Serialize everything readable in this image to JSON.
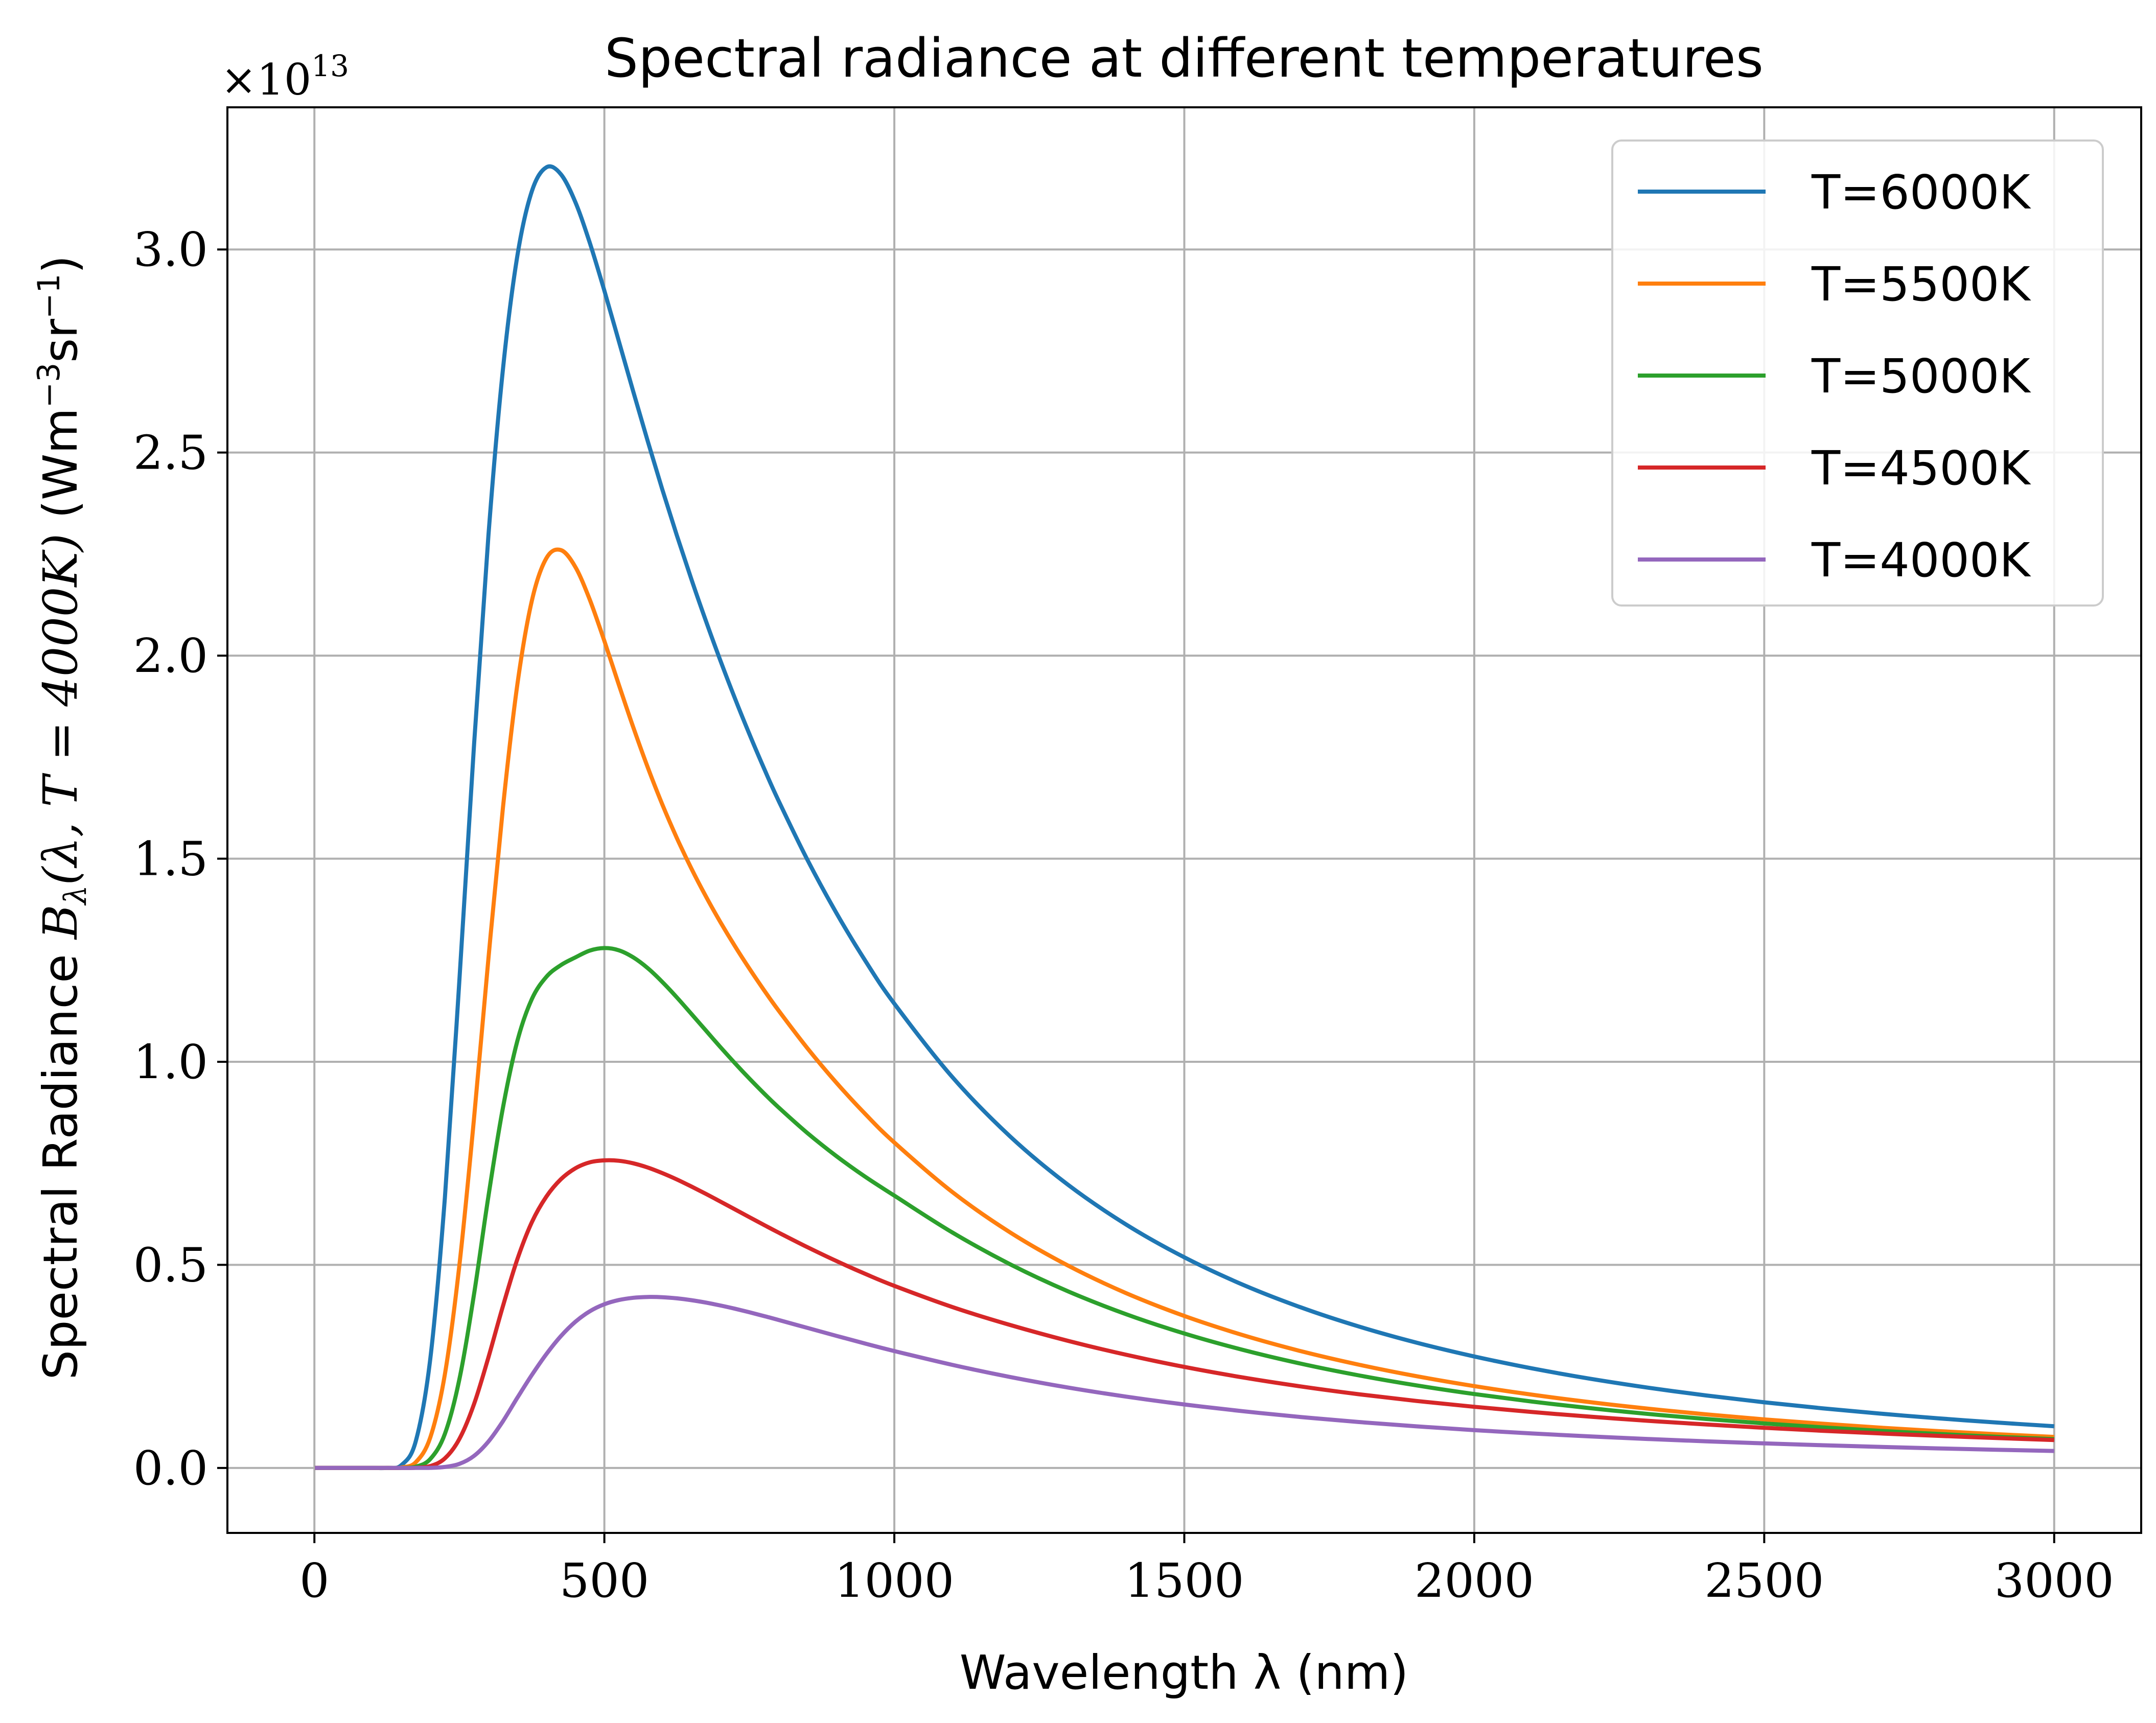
{
  "chart_data": {
    "type": "line",
    "title": "Spectral radiance at different temperatures",
    "xlabel": "Wavelength λ (nm)",
    "ylabel": "Spectral Radiance B_λ(λ, T = 4000K) (Wm⁻³sr⁻¹)",
    "ylabel_parts": {
      "prefix": "Spectral Radiance ",
      "symbol": "B",
      "symbol_sub": "λ",
      "args": "(λ, T = 4000K)",
      "units_open": " (Wm",
      "units_exp1": "−3",
      "units_mid": "sr",
      "units_exp2": "−1",
      "units_close": ")"
    },
    "offset_text": {
      "base": "×10",
      "exponent": "13"
    },
    "xlim": [
      -150,
      3150
    ],
    "ylim": [
      -0.16,
      3.35
    ],
    "y_scale_factor": 10000000000000.0,
    "xticks": [
      0,
      500,
      1000,
      1500,
      2000,
      2500,
      3000
    ],
    "xtick_labels": [
      "0",
      "500",
      "1000",
      "1500",
      "2000",
      "2500",
      "3000"
    ],
    "yticks": [
      0.0,
      0.5,
      1.0,
      1.5,
      2.0,
      2.5,
      3.0
    ],
    "ytick_labels": [
      "0.0",
      "0.5",
      "1.0",
      "1.5",
      "2.0",
      "2.5",
      "3.0"
    ],
    "grid": true,
    "legend_position": "top-right",
    "x": [
      1,
      50,
      100,
      125,
      150,
      175,
      200,
      225,
      250,
      275,
      300,
      325,
      350,
      375,
      400,
      425,
      450,
      475,
      500,
      525,
      550,
      575,
      600,
      625,
      650,
      675,
      700,
      725,
      750,
      775,
      800,
      850,
      900,
      950,
      1000,
      1100,
      1200,
      1300,
      1400,
      1500,
      1600,
      1700,
      1800,
      1900,
      2000,
      2100,
      2200,
      2300,
      2400,
      2500,
      2600,
      2700,
      2800,
      2900,
      3000
    ],
    "series": [
      {
        "name": "T=6000K",
        "color": "#1f77b4",
        "values": [
          0.0,
          0.0,
          0.0,
          0.0001,
          0.0069,
          0.0667,
          0.2706,
          0.6655,
          1.1997,
          1.7737,
          2.2942,
          2.7038,
          2.9843,
          3.1436,
          3.2023,
          3.1853,
          3.1165,
          3.0158,
          2.8983,
          2.7741,
          2.6492,
          2.5269,
          2.4089,
          2.296,
          2.1883,
          2.0857,
          1.9881,
          1.8953,
          1.8071,
          1.7234,
          1.644,
          1.4977,
          1.3665,
          1.2487,
          1.1431,
          0.9623,
          0.8158,
          0.6966,
          0.599,
          0.5186,
          0.4517,
          0.3958,
          0.3486,
          0.3086,
          0.2744,
          0.245,
          0.2196,
          0.1976,
          0.1784,
          0.1616,
          0.1468,
          0.1337,
          0.1222,
          0.1119,
          0.1027
        ]
      },
      {
        "name": "T=5500K",
        "color": "#ff7f0e",
        "values": [
          0.0,
          0.0,
          0.0,
          0.0,
          0.0011,
          0.0143,
          0.0758,
          0.2306,
          0.4985,
          0.8567,
          1.2528,
          1.6246,
          1.929,
          2.1353,
          2.2399,
          2.2599,
          2.2183,
          2.1372,
          2.0359,
          1.9282,
          1.8229,
          1.7241,
          1.6334,
          1.5509,
          1.4759,
          1.4073,
          1.344,
          1.285,
          1.2295,
          1.177,
          1.127,
          1.0336,
          0.9486,
          0.8713,
          0.8012,
          0.6793,
          0.5796,
          0.4978,
          0.4302,
          0.3742,
          0.3274,
          0.2879,
          0.2545,
          0.226,
          0.2015,
          0.1803,
          0.1619,
          0.1459,
          0.1319,
          0.1196,
          0.1088,
          0.0992,
          0.0907,
          0.0832,
          0.0764
        ]
      },
      {
        "name": "T=5000K",
        "color": "#2ca02c",
        "values": [
          0.0,
          0.0,
          0.0,
          0.0,
          0.0002,
          0.0032,
          0.0222,
          0.0839,
          0.218,
          0.4253,
          0.6682,
          0.8862,
          1.0513,
          1.1545,
          1.2091,
          1.238,
          1.257,
          1.2738,
          1.28,
          1.2745,
          1.2569,
          1.2303,
          1.1965,
          1.1585,
          1.118,
          1.077,
          1.0363,
          0.9968,
          0.9588,
          0.9226,
          0.8882,
          0.8247,
          0.7678,
          0.7167,
          0.6705,
          0.5797,
          0.5013,
          0.4345,
          0.3783,
          0.331,
          0.291,
          0.257,
          0.2281,
          0.2033,
          0.1819,
          0.1633,
          0.1471,
          0.1329,
          0.1205,
          0.1096,
          0.0999,
          0.0913,
          0.0837,
          0.0769,
          0.0709
        ]
      },
      {
        "name": "T=4500K",
        "color": "#d62728",
        "values": [
          0.0,
          0.0,
          0.0,
          0.0,
          0.0,
          0.0004,
          0.0047,
          0.0235,
          0.0713,
          0.1561,
          0.2718,
          0.3981,
          0.514,
          0.6052,
          0.668,
          0.7107,
          0.7377,
          0.7525,
          0.7573,
          0.7563,
          0.7499,
          0.7395,
          0.7259,
          0.7103,
          0.693,
          0.6748,
          0.6559,
          0.6367,
          0.6175,
          0.5985,
          0.5798,
          0.5436,
          0.5095,
          0.4777,
          0.4483,
          0.3962,
          0.3519,
          0.3128,
          0.2785,
          0.2487,
          0.223,
          0.2008,
          0.1816,
          0.165,
          0.1505,
          0.1376,
          0.1262,
          0.116,
          0.1069,
          0.0988,
          0.0915,
          0.0849,
          0.079,
          0.0736,
          0.0687
        ]
      },
      {
        "name": "T=4000K",
        "color": "#9467bd",
        "values": [
          0.0,
          0.0,
          0.0,
          0.0,
          0.0,
          0.0,
          0.0003,
          0.0024,
          0.01,
          0.0293,
          0.0648,
          0.1148,
          0.1729,
          0.229,
          0.2803,
          0.3245,
          0.3598,
          0.3858,
          0.403,
          0.4134,
          0.4189,
          0.421,
          0.4204,
          0.4176,
          0.413,
          0.4071,
          0.4,
          0.392,
          0.3833,
          0.3741,
          0.3645,
          0.3449,
          0.3252,
          0.3061,
          0.2878,
          0.2538,
          0.2238,
          0.1978,
          0.1755,
          0.1563,
          0.1398,
          0.1255,
          0.1131,
          0.1024,
          0.093,
          0.0848,
          0.0776,
          0.0712,
          0.0655,
          0.0604,
          0.0559,
          0.0518,
          0.0481,
          0.0448,
          0.0418
        ]
      }
    ]
  }
}
